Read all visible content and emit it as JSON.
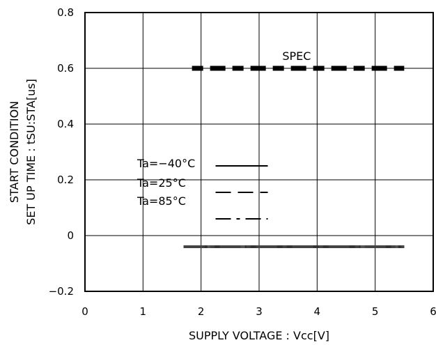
{
  "chart_data": {
    "type": "line",
    "xlabel": "SUPPLY VOLTAGE : Vcc[V]",
    "ylabel_lines": [
      "START CONDITION",
      "SET UP TIME : tSU:STA[us]"
    ],
    "xlim": [
      0,
      6
    ],
    "ylim": [
      -0.2,
      0.8
    ],
    "x_ticks": [
      0,
      1,
      2,
      3,
      4,
      5,
      6
    ],
    "y_ticks": [
      -0.2,
      0,
      0.2,
      0.4,
      0.6,
      0.8
    ],
    "x_tick_labels": [
      "0",
      "1",
      "2",
      "3",
      "4",
      "5",
      "6"
    ],
    "y_tick_labels": [
      "−0.2",
      "0",
      "0.2",
      "0.4",
      "0.6",
      "0.8"
    ],
    "grid": true,
    "spec": {
      "label": "SPEC",
      "x": [
        1.7,
        5.5
      ],
      "y": 0.6
    },
    "series": [
      {
        "name": "Ta=−40°C",
        "dash": "solid",
        "x": [
          1.7,
          5.5
        ],
        "y": [
          -0.04,
          -0.04
        ]
      },
      {
        "name": "Ta=25°C",
        "dash": "dashed",
        "x": [
          1.7,
          5.5
        ],
        "y": [
          -0.04,
          -0.04
        ]
      },
      {
        "name": "Ta=85°C",
        "dash": "dashdot",
        "x": [
          1.7,
          5.5
        ],
        "y": [
          -0.04,
          -0.04
        ]
      }
    ],
    "legend_position": "center-left"
  }
}
